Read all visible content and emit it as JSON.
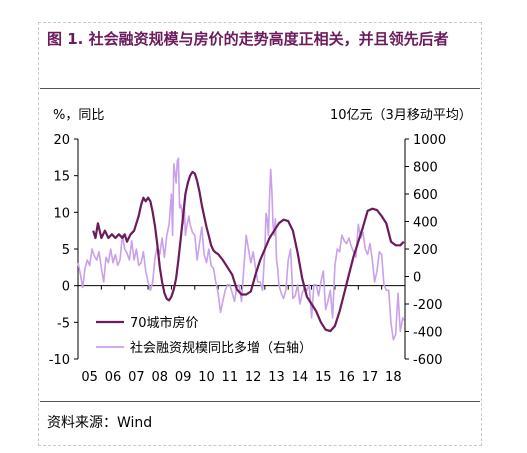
{
  "title": "图 1. 社会融资规模与房价的走势高度正相关，并且领先后者",
  "source": "资料来源：Wind",
  "chart_data": {
    "type": "line",
    "left_unit": "%，同比",
    "right_unit": "10亿元（3月移动平均）",
    "left_ylim": [
      -10,
      20
    ],
    "right_ylim": [
      -600,
      1000
    ],
    "left_ticks": [
      "20",
      "15",
      "10",
      "5",
      "0",
      "-5",
      "-10"
    ],
    "right_ticks": [
      "1000",
      "800",
      "600",
      "400",
      "200",
      "0",
      "-200",
      "-400",
      "-600"
    ],
    "x_ticks": [
      "05",
      "06",
      "07",
      "08",
      "09",
      "10",
      "11",
      "12",
      "13",
      "14",
      "15",
      "16",
      "17",
      "18"
    ],
    "legend_position": "bottom-left",
    "colors": {
      "house": "#6b1a5c",
      "tsf": "#c9a0ea",
      "title": "#6b1a5c"
    },
    "series": [
      {
        "name": "70城市房价",
        "axis": "left",
        "x": [
          5.65,
          5.75,
          5.85,
          6.0,
          6.15,
          6.3,
          6.45,
          6.6,
          6.75,
          6.9,
          7.0,
          7.1,
          7.25,
          7.4,
          7.5,
          7.6,
          7.7,
          7.8,
          7.9,
          8.0,
          8.1,
          8.2,
          8.3,
          8.4,
          8.5,
          8.6,
          8.7,
          8.8,
          8.9,
          9.0,
          9.1,
          9.2,
          9.3,
          9.4,
          9.5,
          9.6,
          9.7,
          9.8,
          9.9,
          10.0,
          10.1,
          10.2,
          10.3,
          10.4,
          10.5,
          10.6,
          10.7,
          10.8,
          10.9,
          11.0,
          11.2,
          11.4,
          11.6,
          11.8,
          12.0,
          12.2,
          12.4,
          12.6,
          12.8,
          13.0,
          13.2,
          13.4,
          13.6,
          13.8,
          14.0,
          14.2,
          14.4,
          14.6,
          14.8,
          15.0,
          15.2,
          15.4,
          15.6,
          15.8,
          16.0,
          16.2,
          16.4,
          16.6,
          16.8,
          17.0,
          17.2,
          17.4,
          17.6,
          17.8,
          18.0,
          18.2,
          18.4,
          18.6,
          18.8,
          18.95
        ],
        "values": [
          7.5,
          6.5,
          8.5,
          6.5,
          7.5,
          6.5,
          7.0,
          6.5,
          7.0,
          6.5,
          7.0,
          6.0,
          7.0,
          7.5,
          8.5,
          9.5,
          11.0,
          12.0,
          11.5,
          12.0,
          11.5,
          10.0,
          8.0,
          5.5,
          2.5,
          0.5,
          -1.0,
          -1.8,
          -2.0,
          -1.5,
          -0.5,
          1.0,
          3.5,
          6.5,
          9.5,
          12.5,
          14.0,
          15.0,
          15.5,
          15.3,
          14.3,
          12.8,
          11.0,
          9.5,
          8.0,
          6.8,
          5.5,
          4.8,
          4.5,
          4.3,
          3.5,
          2.5,
          1.5,
          -0.5,
          -1.2,
          -1.2,
          -0.8,
          1.5,
          3.5,
          5.0,
          6.5,
          7.5,
          8.5,
          9.0,
          8.8,
          7.5,
          4.5,
          1.0,
          -1.5,
          -2.5,
          -3.5,
          -5.0,
          -6.0,
          -6.2,
          -5.5,
          -3.5,
          -1.0,
          1.5,
          4.0,
          6.0,
          8.0,
          10.2,
          10.5,
          10.3,
          9.5,
          8.5,
          6.0,
          5.5,
          5.5,
          6.0
        ]
      },
      {
        "name": "社会融资规模同比多增（右轴）",
        "axis": "right",
        "x": [
          5.0,
          5.1,
          5.2,
          5.3,
          5.4,
          5.5,
          5.6,
          5.7,
          5.8,
          5.9,
          6.0,
          6.1,
          6.2,
          6.3,
          6.4,
          6.5,
          6.6,
          6.7,
          6.8,
          6.9,
          7.0,
          7.1,
          7.2,
          7.3,
          7.4,
          7.5,
          7.6,
          7.7,
          7.8,
          7.9,
          8.0,
          8.1,
          8.2,
          8.3,
          8.4,
          8.5,
          8.6,
          8.7,
          8.8,
          8.9,
          9.0,
          9.05,
          9.1,
          9.15,
          9.2,
          9.25,
          9.3,
          9.35,
          9.4,
          9.45,
          9.5,
          9.55,
          9.6,
          9.65,
          9.7,
          9.75,
          9.8,
          9.9,
          10.0,
          10.1,
          10.2,
          10.3,
          10.4,
          10.5,
          10.6,
          10.7,
          10.8,
          10.9,
          11.0,
          11.1,
          11.2,
          11.3,
          11.4,
          11.5,
          11.6,
          11.7,
          11.8,
          11.9,
          12.0,
          12.1,
          12.2,
          12.3,
          12.4,
          12.5,
          12.6,
          12.7,
          12.8,
          12.9,
          13.0,
          13.05,
          13.1,
          13.15,
          13.2,
          13.25,
          13.3,
          13.35,
          13.4,
          13.45,
          13.5,
          13.55,
          13.6,
          13.7,
          13.8,
          13.9,
          14.0,
          14.1,
          14.2,
          14.3,
          14.4,
          14.5,
          14.6,
          14.7,
          14.8,
          14.9,
          15.0,
          15.1,
          15.2,
          15.3,
          15.4,
          15.5,
          15.6,
          15.7,
          15.8,
          15.9,
          16.0,
          16.1,
          16.2,
          16.3,
          16.4,
          16.5,
          16.6,
          16.7,
          16.8,
          16.9,
          17.0,
          17.1,
          17.2,
          17.3,
          17.4,
          17.5,
          17.6,
          17.7,
          17.8,
          17.9,
          18.0,
          18.1,
          18.2,
          18.3,
          18.4,
          18.5,
          18.6,
          18.7,
          18.8,
          18.9,
          18.95
        ],
        "values": [
          100,
          20,
          -80,
          60,
          120,
          80,
          200,
          150,
          120,
          180,
          60,
          -40,
          140,
          100,
          200,
          100,
          160,
          80,
          120,
          300,
          200,
          170,
          120,
          260,
          120,
          200,
          80,
          100,
          180,
          40,
          -40,
          -100,
          -40,
          140,
          220,
          160,
          280,
          140,
          300,
          380,
          600,
          300,
          820,
          760,
          680,
          840,
          860,
          500,
          520,
          480,
          380,
          520,
          300,
          360,
          400,
          440,
          380,
          320,
          300,
          120,
          240,
          360,
          160,
          100,
          200,
          80,
          60,
          -40,
          -120,
          -260,
          -180,
          -100,
          -60,
          -60,
          -120,
          -180,
          -80,
          -60,
          -180,
          60,
          300,
          200,
          100,
          180,
          60,
          -40,
          -40,
          -100,
          200,
          460,
          420,
          300,
          560,
          780,
          620,
          380,
          300,
          420,
          120,
          60,
          -60,
          -120,
          -160,
          -100,
          120,
          200,
          -160,
          -140,
          -60,
          -200,
          -120,
          -80,
          -100,
          -60,
          -300,
          -60,
          -60,
          -140,
          -40,
          40,
          -240,
          -180,
          -100,
          -300,
          80,
          200,
          180,
          300,
          260,
          240,
          280,
          220,
          180,
          140,
          380,
          280,
          320,
          200,
          160,
          240,
          120,
          -40,
          40,
          180,
          160,
          -60,
          -100,
          -100,
          -340,
          -460,
          -420,
          -120,
          -400,
          -300,
          -320
        ]
      }
    ]
  }
}
